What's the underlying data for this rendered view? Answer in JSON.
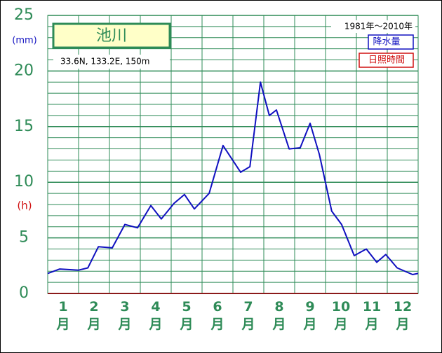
{
  "chart_data": {
    "type": "line",
    "title": "池川",
    "subtitle": "33.6N,  133.2E,  150m",
    "period": "1981年～2010年",
    "y_label": "(mm)",
    "y2_label": "(h)",
    "legend": [
      "降水量",
      "日照時間"
    ],
    "legend_colors": [
      "#1010c0",
      "#d01010"
    ],
    "xlim": [
      0,
      12
    ],
    "xticks": [
      {
        "value": 0.5,
        "label": "1月"
      },
      {
        "value": 1.5,
        "label": "2月"
      },
      {
        "value": 2.5,
        "label": "3月"
      },
      {
        "value": 3.5,
        "label": "4月"
      },
      {
        "value": 4.5,
        "label": "5月"
      },
      {
        "value": 5.5,
        "label": "6月"
      },
      {
        "value": 6.5,
        "label": "7月"
      },
      {
        "value": 7.5,
        "label": "8月"
      },
      {
        "value": 8.5,
        "label": "9月"
      },
      {
        "value": 9.5,
        "label": "10月"
      },
      {
        "value": 10.5,
        "label": "11月"
      },
      {
        "value": 11.5,
        "label": "12月"
      }
    ],
    "xgrid": [
      0,
      1,
      2,
      3,
      4,
      5,
      6,
      7,
      8,
      9,
      10,
      11,
      12
    ],
    "ylim": [
      0,
      25
    ],
    "yticks": [
      0,
      5,
      10,
      15,
      20,
      25
    ],
    "yticks_minor": [
      1,
      2,
      3,
      4,
      6,
      7,
      8,
      9,
      11,
      12,
      13,
      14,
      16,
      17,
      18,
      19,
      21,
      22,
      23,
      24
    ],
    "grid": true,
    "series": [
      {
        "name": "降水量",
        "color": "#1010c0",
        "x": [
          0,
          0.39,
          1.0,
          1.3,
          1.64,
          2.09,
          2.5,
          2.91,
          3.34,
          3.68,
          4.09,
          4.43,
          4.75,
          5.23,
          5.68,
          6.25,
          6.55,
          6.89,
          7.18,
          7.41,
          7.82,
          8.18,
          8.5,
          8.8,
          9.2,
          9.52,
          9.93,
          10.32,
          10.66,
          10.95,
          11.32,
          11.82,
          12
        ],
        "values": [
          1.8,
          2.2,
          2.1,
          2.3,
          4.2,
          4.1,
          6.2,
          5.9,
          7.9,
          6.7,
          8.1,
          8.9,
          7.6,
          9.0,
          13.3,
          10.9,
          11.4,
          19.0,
          16.0,
          16.5,
          13.0,
          13.1,
          15.3,
          12.5,
          7.4,
          6.2,
          3.4,
          4.0,
          2.8,
          3.5,
          2.3,
          1.7,
          1.8
        ]
      }
    ]
  }
}
